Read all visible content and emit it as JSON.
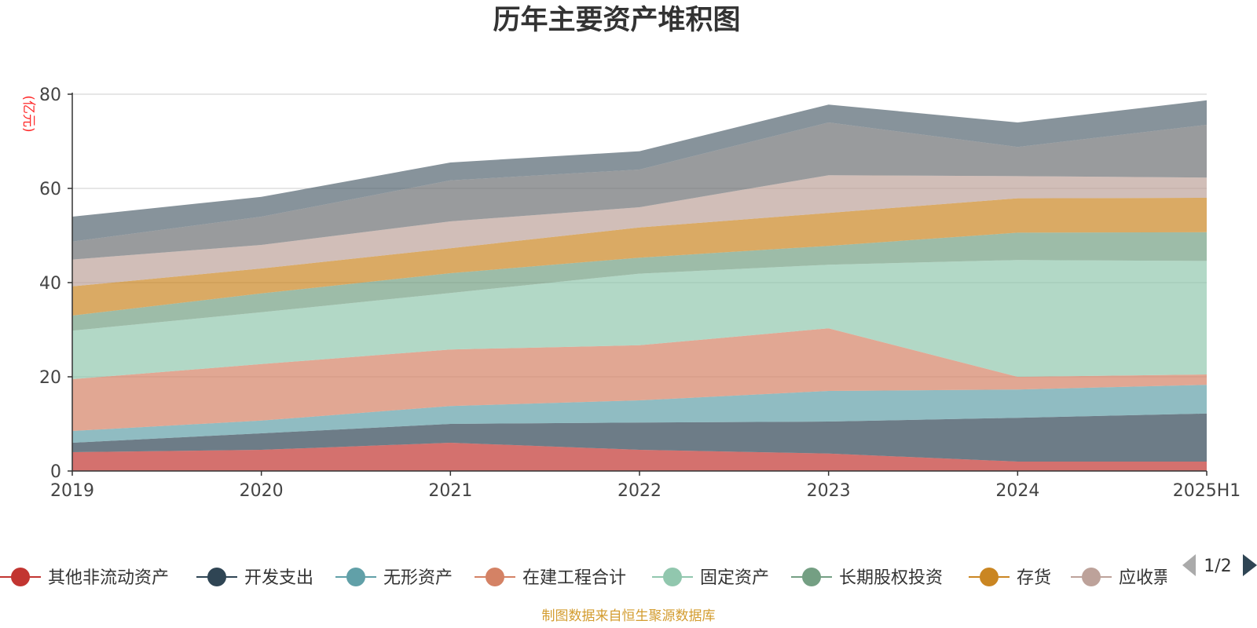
{
  "chart_data": {
    "type": "area",
    "title": "历年主要资产堆积图",
    "unit_label": "(亿元)",
    "stacked": true,
    "categories": [
      "2019",
      "2020",
      "2021",
      "2022",
      "2023",
      "2024",
      "2025H1"
    ],
    "ylim": [
      0,
      80
    ],
    "yticks": [
      0,
      20,
      40,
      60,
      80
    ],
    "grid": true,
    "series": [
      {
        "name": "其他非流动资产",
        "color": "#c23531",
        "values": [
          4.0,
          4.5,
          6.0,
          4.5,
          3.7,
          2.0,
          2.0
        ]
      },
      {
        "name": "开发支出",
        "color": "#2f4554",
        "values": [
          2.0,
          3.5,
          4.0,
          5.8,
          6.8,
          9.3,
          10.2
        ]
      },
      {
        "name": "无形资产",
        "color": "#61a0a8",
        "values": [
          2.5,
          2.7,
          3.8,
          4.7,
          6.5,
          6.0,
          6.1
        ]
      },
      {
        "name": "在建工程合计",
        "color": "#d48265",
        "values": [
          11.0,
          12.0,
          12.0,
          11.7,
          13.3,
          2.7,
          2.2
        ]
      },
      {
        "name": "固定资产",
        "color": "#91c7ae",
        "values": [
          10.3,
          11.0,
          12.0,
          15.2,
          13.5,
          24.8,
          24.1
        ]
      },
      {
        "name": "长期股权投资",
        "color": "#749f83",
        "values": [
          3.2,
          4.0,
          4.2,
          3.4,
          4.0,
          5.8,
          6.1
        ]
      },
      {
        "name": "存货",
        "color": "#ca8622",
        "values": [
          6.2,
          5.3,
          5.3,
          6.4,
          7.0,
          7.3,
          7.3
        ]
      },
      {
        "name": "应收票据及应收账款",
        "color": "#bda29a",
        "values": [
          5.7,
          5.0,
          5.7,
          4.3,
          8.0,
          4.7,
          4.3
        ]
      },
      {
        "name": "",
        "color": "#6e7074",
        "values": [
          3.8,
          6.0,
          8.7,
          8.0,
          11.2,
          6.2,
          11.2
        ]
      },
      {
        "name": "",
        "color": "#546570",
        "values": [
          5.3,
          4.2,
          3.8,
          3.9,
          3.8,
          5.2,
          5.2
        ]
      }
    ],
    "legend_placement": "bottom"
  },
  "legend": {
    "visible_labels": [
      "其他非流动资产",
      "开发支出",
      "无形资产",
      "在建工程合计",
      "固定资产",
      "长期股权投资",
      "存货",
      "应收票"
    ],
    "page_indicator": "1/2"
  },
  "footer": {
    "source_text": "制图数据来自恒生聚源数据库"
  }
}
